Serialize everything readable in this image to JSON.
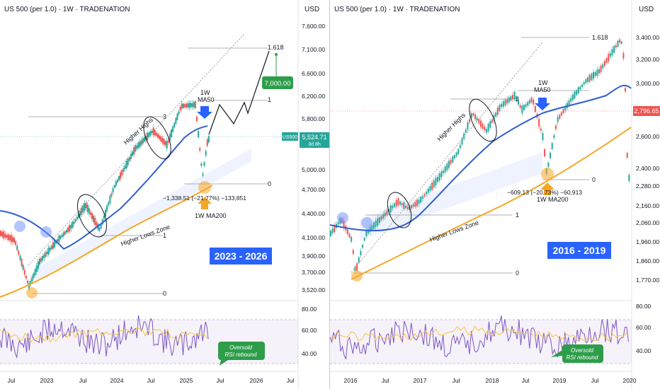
{
  "charts": [
    {
      "title": "US 500 (per 1.0) · 1W · TRADENATION",
      "currency": "USD",
      "y_ticks": [
        "7,600.00",
        "7,100.00",
        "6,600.00",
        "6,200.00",
        "5,800.00",
        "5,000.00",
        "4,700.00",
        "4,400.00",
        "4,100.00",
        "3,900.00",
        "3,700.00",
        "3,520.00"
      ],
      "rsi_ticks": [
        "80.00",
        "60.00",
        "40.00"
      ],
      "x_ticks": [
        "Jul",
        "2023",
        "Jul",
        "2024",
        "Jul",
        "2025",
        "Jul",
        "2026",
        "Jul"
      ],
      "price_label": {
        "value": "5,524.71",
        "ticker": "US500",
        "countdown": "3d 8h"
      },
      "target_label": "7,000.00",
      "fib_levels": [
        {
          "label": "1.618"
        },
        {
          "label": "1"
        },
        {
          "label": "3"
        },
        {
          "label": "0"
        },
        {
          "label": "1"
        },
        {
          "label": "0"
        }
      ],
      "annotations": {
        "higher_highs": "Higher Highs",
        "higher_lows": "Higher Lows Zone",
        "ma50": "1W\nMA50",
        "ma200": "1W MA200",
        "drop": "−1,338.51 (−21.77%) −133,851",
        "period": "2023 - 2026",
        "rsi_note": "Oversold\nRSI rebound"
      }
    },
    {
      "title": "US 500 (per 1.0) · 1W · TRADENATION",
      "currency": "USD",
      "y_ticks": [
        "3,400.00",
        "3,200.00",
        "3,000.00",
        "2,600.00",
        "2,400.00",
        "2,280.00",
        "2,160.00",
        "2,060.00",
        "1,960.00",
        "1,860.00",
        "1,770.00"
      ],
      "rsi_ticks": [
        "80.00",
        "60.00",
        "40.00"
      ],
      "x_ticks": [
        "2016",
        "Jul",
        "2017",
        "Jul",
        "2018",
        "Jul",
        "2019",
        "Jul",
        "2020"
      ],
      "price_label": {
        "value": "2,796.65"
      },
      "fib_levels": [
        {
          "label": "1.618"
        },
        {
          "label": "3"
        },
        {
          "label": "0"
        },
        {
          "label": "1"
        },
        {
          "label": "0"
        }
      ],
      "annotations": {
        "higher_highs": "Higher Highs",
        "higher_lows": "Higher Lows Zone",
        "ma50": "1W\nMA50",
        "ma200": "1W MA200",
        "drop": "−609.13 (−20.73%) −60,913",
        "period": "2016 - 2019",
        "rsi_note": "Oversold\nRSI rebound"
      }
    }
  ],
  "colors": {
    "ma50": "#2f5fd0",
    "ma200": "#f5a623",
    "candle_up": "#26a69a",
    "candle_down": "#ef5350",
    "rsi": "#7e57c2",
    "rsi_ma": "#f5c542",
    "period_box": "#2962ff",
    "target_box": "#2e9d4a",
    "price_box": "#26a69a"
  }
}
